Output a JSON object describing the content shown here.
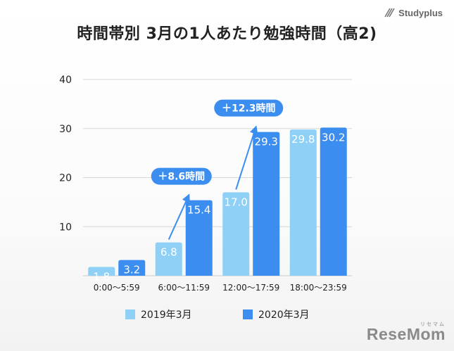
{
  "brand": {
    "name": "Studyplus",
    "icon": "studyplus-logo-icon"
  },
  "watermark": {
    "name": "ReseMom",
    "small": "リセマム"
  },
  "colors": {
    "series_2019": "#8fd0f7",
    "series_2020": "#3b8ef0",
    "callout": "#3b8ef0",
    "arrow": "#3b8ef0",
    "grid": "#d6d6d6"
  },
  "chart_data": {
    "type": "bar",
    "title": "時間帯別 3月の1人あたり勉強時間（高2)",
    "xlabel": "",
    "ylabel": "",
    "ylim": [
      0,
      40
    ],
    "yticks": [
      10,
      20,
      30,
      40
    ],
    "grid": true,
    "legend_position": "bottom",
    "categories": [
      "0:00〜5:59",
      "6:00〜11:59",
      "12:00〜17:59",
      "18:00〜23:59"
    ],
    "series": [
      {
        "name": "2019年3月",
        "values": [
          1.8,
          6.8,
          17.0,
          29.8
        ],
        "labels": [
          "1.8",
          "6.8",
          "17.0",
          "29.8"
        ]
      },
      {
        "name": "2020年3月",
        "values": [
          3.2,
          15.4,
          29.3,
          30.2
        ],
        "labels": [
          "3.2",
          "15.4",
          "29.3",
          "30.2"
        ]
      }
    ],
    "annotations": [
      {
        "text": "＋8.6時間",
        "category": 1
      },
      {
        "text": "＋12.3時間",
        "category": 2
      }
    ]
  }
}
